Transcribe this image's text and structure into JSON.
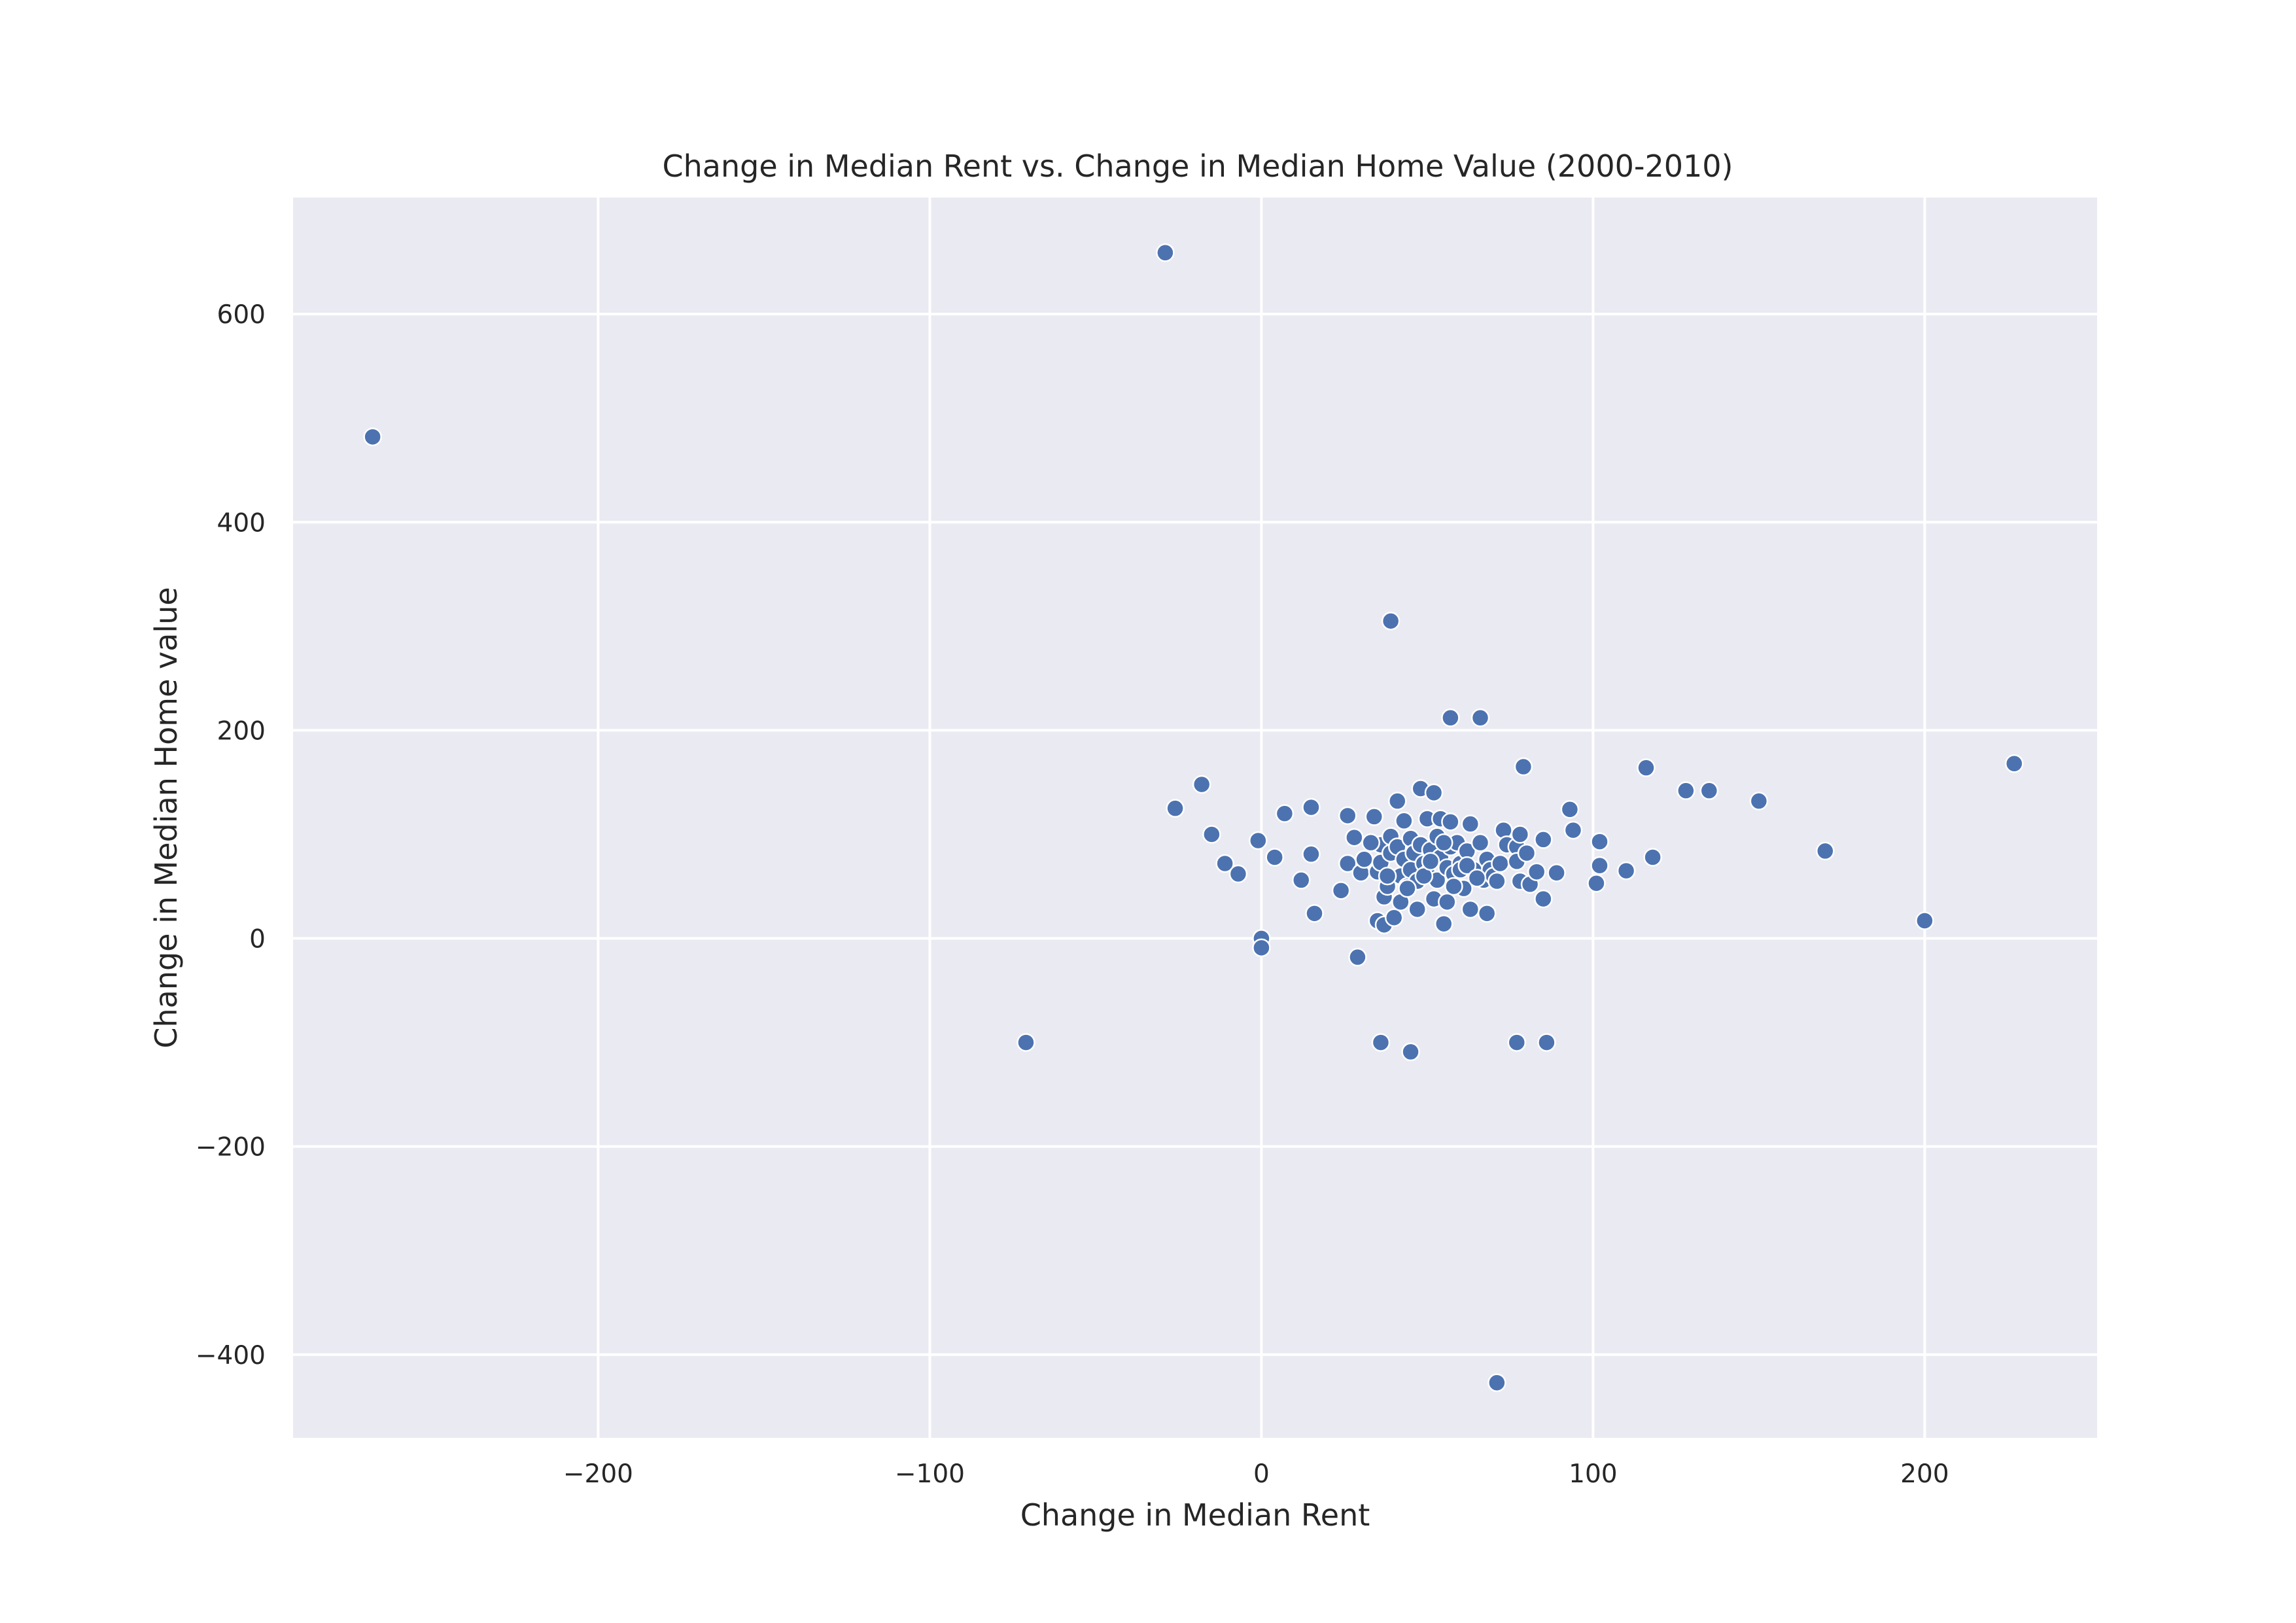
{
  "chart_data": {
    "type": "scatter",
    "title": "Change in Median Rent vs. Change in Median Home Value (2000-2010)",
    "xlabel": "Change in Median Rent",
    "ylabel": "Change in Median Home value",
    "xlim": [
      -292,
      252
    ],
    "ylim": [
      -480,
      712
    ],
    "x_ticks": [
      -200,
      -100,
      0,
      100,
      200
    ],
    "y_ticks": [
      -400,
      -200,
      0,
      200,
      400,
      600
    ],
    "x_tick_labels": [
      "−200",
      "−100",
      "0",
      "100",
      "200"
    ],
    "y_tick_labels": [
      "−400",
      "−200",
      "0",
      "200",
      "400",
      "600"
    ],
    "grid": true,
    "colors": {
      "background": "#eaeaf2",
      "grid": "#ffffff",
      "point": "#4c72b0",
      "point_edge": "#ffffff",
      "text": "#262626"
    },
    "series": [
      {
        "points": [
          [
            -268,
            482
          ],
          [
            -29,
            659
          ],
          [
            39,
            305
          ],
          [
            -71,
            -100
          ],
          [
            71,
            -427
          ],
          [
            57,
            212
          ],
          [
            66,
            212
          ],
          [
            227,
            168
          ],
          [
            200,
            17
          ],
          [
            170,
            84
          ],
          [
            150,
            132
          ],
          [
            135,
            142
          ],
          [
            128,
            142
          ],
          [
            116,
            164
          ],
          [
            118,
            78
          ],
          [
            79,
            165
          ],
          [
            110,
            65
          ],
          [
            102,
            93
          ],
          [
            102,
            70
          ],
          [
            101,
            53
          ],
          [
            93,
            124
          ],
          [
            94,
            104
          ],
          [
            89,
            63
          ],
          [
            85,
            95
          ],
          [
            85,
            38
          ],
          [
            -26,
            125
          ],
          [
            -18,
            148
          ],
          [
            -15,
            100
          ],
          [
            -11,
            72
          ],
          [
            -7,
            62
          ],
          [
            -1,
            94
          ],
          [
            4,
            78
          ],
          [
            7,
            120
          ],
          [
            12,
            56
          ],
          [
            15,
            126
          ],
          [
            15,
            81
          ],
          [
            16,
            24
          ],
          [
            24,
            46
          ],
          [
            26,
            72
          ],
          [
            26,
            118
          ],
          [
            28,
            97
          ],
          [
            30,
            63
          ],
          [
            31,
            76
          ],
          [
            34,
            117
          ],
          [
            35,
            17
          ],
          [
            35,
            64
          ],
          [
            36,
            90
          ],
          [
            36,
            73
          ],
          [
            37,
            40
          ],
          [
            37,
            13
          ],
          [
            38,
            50
          ],
          [
            39,
            98
          ],
          [
            39,
            82
          ],
          [
            40,
            20
          ],
          [
            41,
            132
          ],
          [
            41,
            88
          ],
          [
            42,
            60
          ],
          [
            42,
            35
          ],
          [
            43,
            113
          ],
          [
            43,
            76
          ],
          [
            44,
            50
          ],
          [
            45,
            96
          ],
          [
            45,
            66
          ],
          [
            46,
            82
          ],
          [
            47,
            55
          ],
          [
            47,
            28
          ],
          [
            48,
            144
          ],
          [
            48,
            90
          ],
          [
            49,
            72
          ],
          [
            50,
            115
          ],
          [
            50,
            62
          ],
          [
            51,
            85
          ],
          [
            52,
            140
          ],
          [
            52,
            38
          ],
          [
            53,
            98
          ],
          [
            53,
            56
          ],
          [
            54,
            115
          ],
          [
            54,
            78
          ],
          [
            55,
            14
          ],
          [
            56,
            68
          ],
          [
            56,
            35
          ],
          [
            57,
            112
          ],
          [
            57,
            88
          ],
          [
            58,
            62
          ],
          [
            59,
            92
          ],
          [
            60,
            72
          ],
          [
            61,
            48
          ],
          [
            62,
            84
          ],
          [
            63,
            110
          ],
          [
            63,
            28
          ],
          [
            64,
            66
          ],
          [
            66,
            92
          ],
          [
            67,
            56
          ],
          [
            68,
            76
          ],
          [
            68,
            24
          ],
          [
            69,
            66
          ],
          [
            70,
            60
          ],
          [
            71,
            55
          ],
          [
            72,
            72
          ],
          [
            73,
            104
          ],
          [
            74,
            90
          ],
          [
            77,
            88
          ],
          [
            77,
            74
          ],
          [
            78,
            55
          ],
          [
            78,
            100
          ],
          [
            80,
            82
          ],
          [
            81,
            52
          ],
          [
            83,
            64
          ],
          [
            0,
            0
          ],
          [
            0,
            -9
          ],
          [
            29,
            -18
          ],
          [
            36,
            -100
          ],
          [
            45,
            -109
          ],
          [
            77,
            -100
          ],
          [
            86,
            -100
          ],
          [
            33,
            92
          ],
          [
            38,
            60
          ],
          [
            44,
            48
          ],
          [
            49,
            60
          ],
          [
            51,
            74
          ],
          [
            55,
            92
          ],
          [
            58,
            50
          ],
          [
            60,
            66
          ],
          [
            62,
            70
          ],
          [
            65,
            58
          ]
        ]
      }
    ]
  }
}
